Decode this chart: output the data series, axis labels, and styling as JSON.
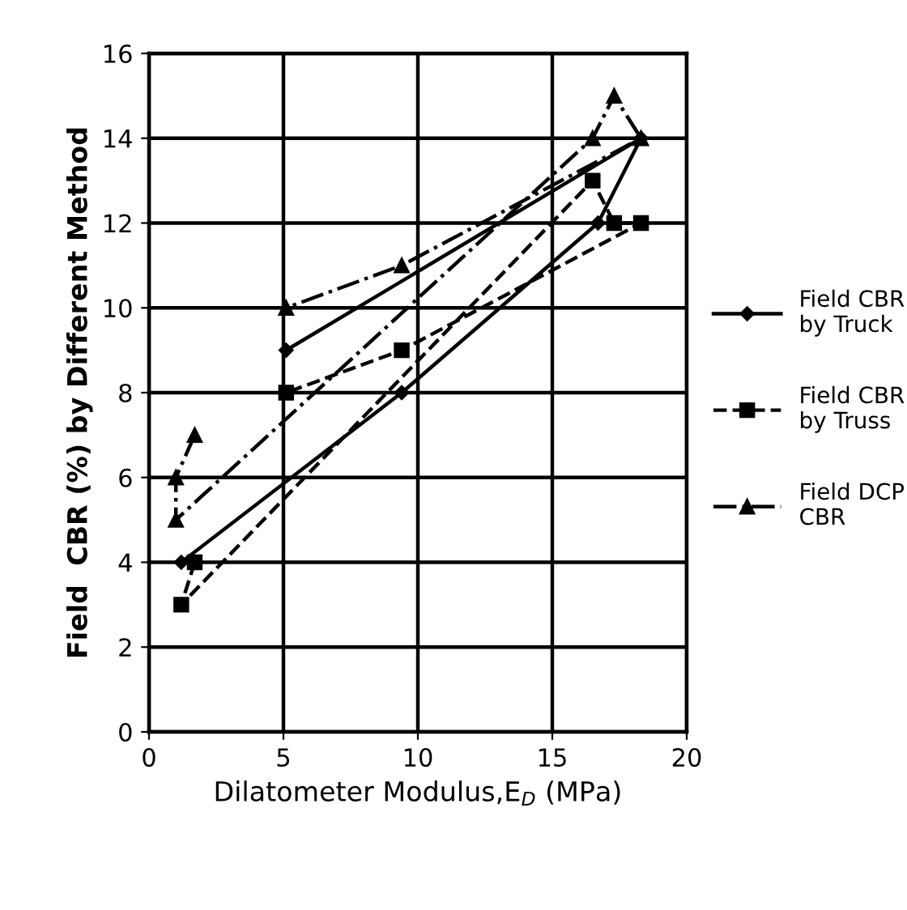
{
  "chart_data": {
    "type": "line",
    "xlabel": "Dilatometer Modulus,E$_{D}$ (MPa)",
    "ylabel": "Field  CBR (%) by Different Method",
    "xlim": [
      0,
      20
    ],
    "ylim": [
      0,
      16
    ],
    "xticks": [
      0,
      5,
      10,
      15,
      20
    ],
    "yticks": [
      0,
      2,
      4,
      6,
      8,
      10,
      12,
      14,
      16
    ],
    "grid": true,
    "legend": "right",
    "series": [
      {
        "name": "Field CBR\nby Truck",
        "color": "#000000",
        "marker": "diamond",
        "line_style": "solid",
        "x": [
          1.2,
          9.4,
          16.7,
          18.3,
          5.1
        ],
        "values": [
          4,
          8,
          12,
          14,
          9
        ]
      },
      {
        "name": "Field CBR\nby Truss",
        "color": "#000000",
        "marker": "square",
        "line_style": "dashed",
        "x": [
          1.7,
          1.2,
          16.5,
          17.3,
          18.3,
          9.4,
          5.1
        ],
        "values": [
          4,
          3,
          13,
          12,
          12,
          9,
          8
        ]
      },
      {
        "name": "Field DCP\nCBR",
        "color": "#000000",
        "marker": "triangle",
        "line_style": "dashdot",
        "x": [
          1.7,
          1.0,
          1.0,
          16.5,
          17.3,
          18.3,
          9.4,
          5.1
        ],
        "values": [
          7,
          6,
          5,
          14,
          15,
          14,
          11,
          10
        ]
      }
    ]
  }
}
